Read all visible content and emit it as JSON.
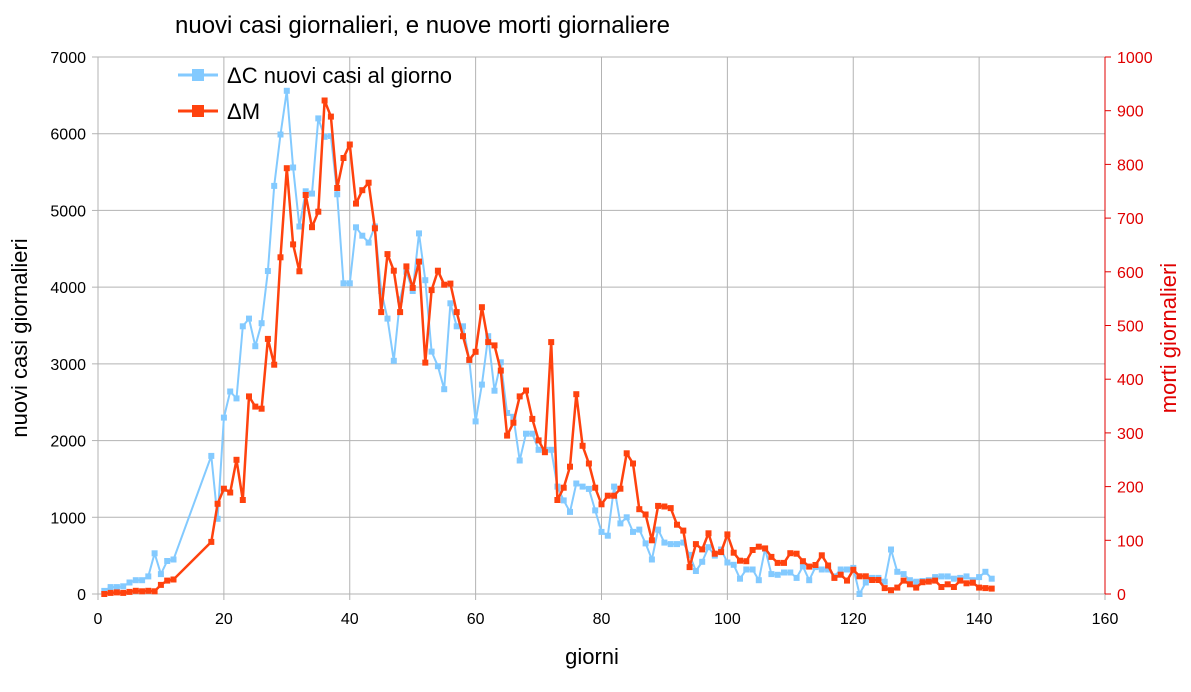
{
  "chart_data": {
    "type": "line",
    "title": "nuovi casi giornalieri, e nuove morti giornaliere",
    "xlabel": "giorni",
    "ylabel_left": "nuovi casi giornalieri",
    "ylabel_right": "morti giornalieri",
    "xlim": [
      0,
      160
    ],
    "x_ticks": [
      0,
      20,
      40,
      60,
      80,
      100,
      120,
      140,
      160
    ],
    "ylim_left": [
      0,
      7000
    ],
    "y_ticks_left": [
      0,
      1000,
      2000,
      3000,
      4000,
      5000,
      6000,
      7000
    ],
    "ylim_right": [
      0,
      1000
    ],
    "y_ticks_right": [
      0,
      100,
      200,
      300,
      400,
      500,
      600,
      700,
      800,
      900,
      1000
    ],
    "grid": true,
    "legend_position": "top-left",
    "colors": {
      "cases": "#83caff",
      "deaths": "#ff420e",
      "right_axis": "#e00000"
    },
    "series": [
      {
        "name": "ΔC nuovi casi al giorno",
        "axis": "left",
        "x": [
          1,
          2,
          3,
          4,
          5,
          6,
          7,
          8,
          9,
          10,
          11,
          12,
          18,
          19,
          20,
          21,
          22,
          23,
          24,
          25,
          26,
          27,
          28,
          29,
          30,
          31,
          32,
          33,
          34,
          35,
          36,
          37,
          38,
          39,
          40,
          41,
          42,
          43,
          44,
          45,
          46,
          47,
          48,
          49,
          50,
          51,
          52,
          53,
          54,
          55,
          56,
          57,
          58,
          59,
          60,
          61,
          62,
          63,
          64,
          65,
          66,
          67,
          68,
          69,
          70,
          71,
          72,
          73,
          74,
          75,
          76,
          77,
          78,
          79,
          80,
          81,
          82,
          83,
          84,
          85,
          86,
          87,
          88,
          89,
          90,
          91,
          92,
          93,
          94,
          95,
          96,
          97,
          98,
          99,
          100,
          101,
          102,
          103,
          104,
          105,
          106,
          107,
          108,
          109,
          110,
          111,
          112,
          113,
          114,
          115,
          116,
          117,
          118,
          119,
          120,
          121,
          122,
          123,
          124,
          125,
          126,
          127,
          128,
          129,
          130,
          131,
          132,
          133,
          134,
          135,
          136,
          137,
          138,
          139,
          140,
          141,
          142
        ],
        "values": [
          40,
          90,
          90,
          100,
          150,
          180,
          180,
          230,
          530,
          260,
          430,
          450,
          1800,
          980,
          2300,
          2640,
          2550,
          3490,
          3590,
          3230,
          3530,
          4210,
          5320,
          5990,
          6560,
          5560,
          4790,
          5250,
          5220,
          6200,
          5960,
          5970,
          5210,
          4050,
          4050,
          4780,
          4670,
          4580,
          4790,
          3950,
          3590,
          3040,
          3840,
          4200,
          3950,
          4700,
          4090,
          3160,
          2970,
          2670,
          3790,
          3490,
          3490,
          3050,
          2250,
          2730,
          3360,
          2650,
          3020,
          2360,
          2310,
          1740,
          2090,
          2090,
          1880,
          1880,
          1880,
          1400,
          1220,
          1070,
          1440,
          1400,
          1370,
          1090,
          810,
          760,
          1400,
          920,
          1000,
          810,
          840,
          660,
          450,
          840,
          670,
          650,
          650,
          670,
          510,
          300,
          420,
          610,
          500,
          580,
          410,
          380,
          200,
          320,
          320,
          180,
          590,
          260,
          250,
          280,
          280,
          210,
          360,
          180,
          350,
          320,
          320,
          230,
          320,
          320,
          340,
          0,
          150,
          210,
          210,
          160,
          580,
          290,
          260,
          180,
          160,
          170,
          180,
          220,
          230,
          230,
          200,
          210,
          230,
          180,
          220,
          290,
          200
        ]
      },
      {
        "name": "ΔM",
        "axis": "right",
        "x": [
          1,
          2,
          3,
          4,
          5,
          6,
          7,
          8,
          9,
          10,
          11,
          12,
          18,
          19,
          20,
          21,
          22,
          23,
          24,
          25,
          26,
          27,
          28,
          29,
          30,
          31,
          32,
          33,
          34,
          35,
          36,
          37,
          38,
          39,
          40,
          41,
          42,
          43,
          44,
          45,
          46,
          47,
          48,
          49,
          50,
          51,
          52,
          53,
          54,
          55,
          56,
          57,
          58,
          59,
          60,
          61,
          62,
          63,
          64,
          65,
          66,
          67,
          68,
          69,
          70,
          71,
          72,
          73,
          74,
          75,
          76,
          77,
          78,
          79,
          80,
          81,
          82,
          83,
          84,
          85,
          86,
          87,
          88,
          89,
          90,
          91,
          92,
          93,
          94,
          95,
          96,
          97,
          98,
          99,
          100,
          101,
          102,
          103,
          104,
          105,
          106,
          107,
          108,
          109,
          110,
          111,
          112,
          113,
          114,
          115,
          116,
          117,
          118,
          119,
          120,
          121,
          122,
          123,
          124,
          125,
          126,
          127,
          128,
          129,
          130,
          131,
          132,
          133,
          134,
          135,
          136,
          137,
          138,
          139,
          140,
          141,
          142
        ],
        "values": [
          0,
          2,
          3,
          2,
          4,
          6,
          5,
          6,
          5,
          17,
          25,
          27,
          97,
          168,
          196,
          189,
          250,
          175,
          368,
          349,
          345,
          475,
          427,
          627,
          793,
          651,
          601,
          743,
          683,
          712,
          919,
          889,
          756,
          812,
          837,
          727,
          752,
          766,
          681,
          525,
          633,
          602,
          525,
          610,
          570,
          619,
          431,
          566,
          602,
          576,
          578,
          525,
          480,
          436,
          451,
          534,
          469,
          463,
          416,
          295,
          319,
          368,
          379,
          326,
          286,
          264,
          469,
          175,
          198,
          237,
          372,
          276,
          243,
          198,
          167,
          183,
          183,
          196,
          262,
          243,
          158,
          148,
          100,
          164,
          163,
          160,
          129,
          118,
          50,
          93,
          83,
          113,
          75,
          78,
          111,
          77,
          62,
          61,
          82,
          88,
          85,
          69,
          58,
          58,
          76,
          75,
          61,
          51,
          54,
          72,
          53,
          30,
          36,
          25,
          45,
          33,
          33,
          26,
          26,
          11,
          7,
          12,
          25,
          18,
          12,
          22,
          23,
          25,
          13,
          18,
          13,
          25,
          20,
          21,
          12,
          11,
          10
        ]
      }
    ]
  }
}
